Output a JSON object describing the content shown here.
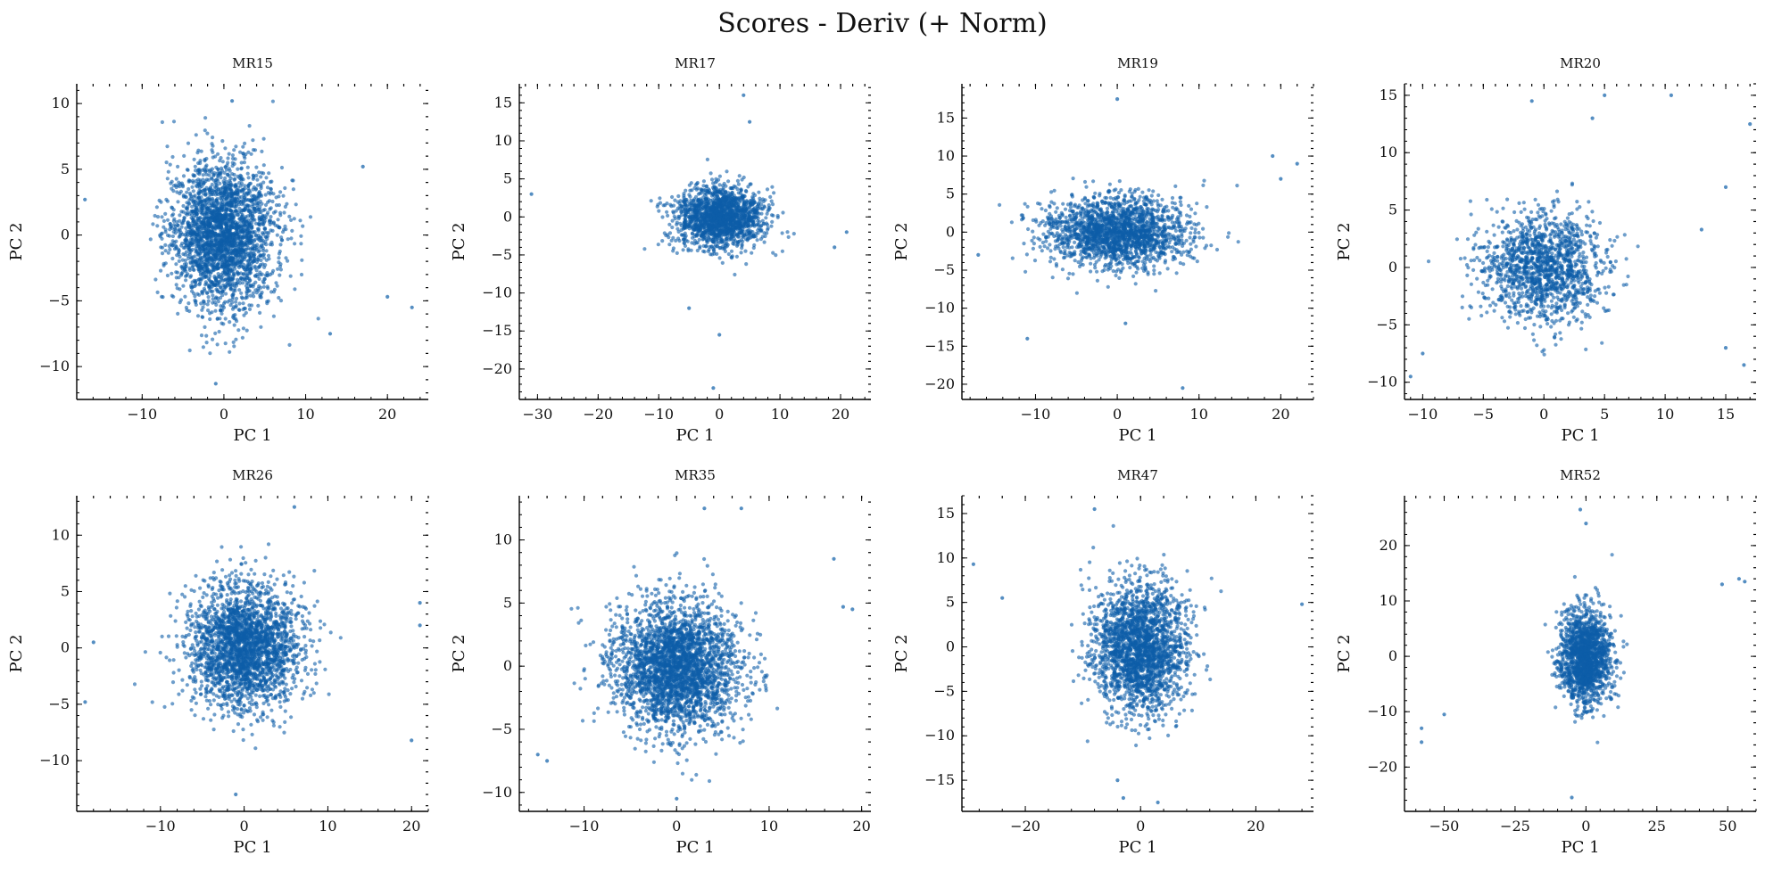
{
  "figure": {
    "suptitle": "Scores - Deriv (+ Norm)",
    "point_color": "#0d5ea8"
  },
  "chart_data": [
    {
      "type": "scatter",
      "title": "MR15",
      "xlabel": "PC 1",
      "ylabel": "PC 2",
      "xlim": [
        -18,
        25
      ],
      "ylim": [
        -12.5,
        11.5
      ],
      "xticks": [
        -10,
        0,
        10,
        20
      ],
      "yticks": [
        -10,
        -5,
        0,
        5,
        10
      ],
      "center": [
        0,
        0
      ],
      "spread": [
        3.2,
        2.8
      ],
      "points": 2600,
      "outliers": [
        [
          23,
          -5.5
        ],
        [
          20,
          -4.7
        ],
        [
          -17,
          2.7
        ],
        [
          17,
          5.2
        ],
        [
          -1,
          -11.3
        ],
        [
          1,
          10.2
        ],
        [
          13,
          -7.5
        ]
      ]
    },
    {
      "type": "scatter",
      "title": "MR17",
      "xlabel": "PC 1",
      "ylabel": "PC 2",
      "xlim": [
        -33,
        25
      ],
      "ylim": [
        -24,
        17.5
      ],
      "xticks": [
        -30,
        -20,
        -10,
        0,
        10,
        20
      ],
      "yticks": [
        -20,
        -15,
        -10,
        -5,
        0,
        5,
        10,
        15
      ],
      "center": [
        0,
        0
      ],
      "spread": [
        3.8,
        2.0
      ],
      "points": 1700,
      "outliers": [
        [
          -31,
          3
        ],
        [
          -5,
          -12
        ],
        [
          0,
          -15.5
        ],
        [
          -1,
          -22.5
        ],
        [
          4,
          16
        ],
        [
          5,
          12.5
        ],
        [
          19,
          -4
        ],
        [
          21,
          -2
        ]
      ]
    },
    {
      "type": "scatter",
      "title": "MR19",
      "xlabel": "PC 1",
      "ylabel": "PC 2",
      "xlim": [
        -19,
        24
      ],
      "ylim": [
        -22,
        19.5
      ],
      "xticks": [
        -10,
        0,
        10,
        20
      ],
      "yticks": [
        -20,
        -15,
        -10,
        -5,
        0,
        5,
        10,
        15
      ],
      "center": [
        0,
        0
      ],
      "spread": [
        4.3,
        2.3
      ],
      "points": 1900,
      "outliers": [
        [
          -17,
          -3
        ],
        [
          -11,
          -14
        ],
        [
          0,
          17.5
        ],
        [
          1,
          -12
        ],
        [
          8,
          -20.5
        ],
        [
          19,
          10
        ],
        [
          22,
          9
        ],
        [
          20,
          7
        ]
      ]
    },
    {
      "type": "scatter",
      "title": "MR20",
      "xlabel": "PC 1",
      "ylabel": "PC 2",
      "xlim": [
        -11.5,
        17.5
      ],
      "ylim": [
        -11.5,
        16
      ],
      "xticks": [
        -10,
        -5,
        0,
        5,
        10,
        15
      ],
      "yticks": [
        -10,
        -5,
        0,
        5,
        10,
        15
      ],
      "center": [
        0,
        0
      ],
      "spread": [
        2.5,
        2.4
      ],
      "points": 1400,
      "outliers": [
        [
          -1,
          14.5
        ],
        [
          4,
          13
        ],
        [
          5,
          15
        ],
        [
          10.5,
          15
        ],
        [
          17,
          12.5
        ],
        [
          15,
          -7
        ],
        [
          13,
          3.3
        ],
        [
          -10,
          -7.5
        ],
        [
          -11,
          -9.5
        ],
        [
          16.5,
          -8.5
        ],
        [
          15,
          7
        ]
      ]
    },
    {
      "type": "scatter",
      "title": "MR26",
      "xlabel": "PC 1",
      "ylabel": "PC 2",
      "xlim": [
        -20,
        22
      ],
      "ylim": [
        -14.5,
        13.5
      ],
      "xticks": [
        -10,
        0,
        10,
        20
      ],
      "yticks": [
        -10,
        -5,
        0,
        5,
        10
      ],
      "center": [
        0,
        0
      ],
      "spread": [
        3.3,
        2.7
      ],
      "points": 2400,
      "outliers": [
        [
          -19,
          -4.8
        ],
        [
          -18,
          0.5
        ],
        [
          20,
          -8.2
        ],
        [
          21,
          4
        ],
        [
          21,
          2
        ],
        [
          -1,
          -13
        ],
        [
          6,
          12.5
        ]
      ]
    },
    {
      "type": "scatter",
      "title": "MR35",
      "xlabel": "PC 1",
      "ylabel": "PC 2",
      "xlim": [
        -17,
        21
      ],
      "ylim": [
        -11.5,
        13.5
      ],
      "xticks": [
        -10,
        0,
        10,
        20
      ],
      "yticks": [
        -10,
        -5,
        0,
        5,
        10
      ],
      "center": [
        0,
        0
      ],
      "spread": [
        3.4,
        2.6
      ],
      "points": 2800,
      "outliers": [
        [
          -15,
          -7
        ],
        [
          -14,
          -7.5
        ],
        [
          18,
          4.7
        ],
        [
          19,
          4.5
        ],
        [
          17,
          8.5
        ],
        [
          7,
          12.5
        ],
        [
          3,
          12.5
        ],
        [
          0,
          -10.5
        ]
      ]
    },
    {
      "type": "scatter",
      "title": "MR47",
      "xlabel": "PC 1",
      "ylabel": "PC 2",
      "xlim": [
        -31,
        30
      ],
      "ylim": [
        -18.5,
        17
      ],
      "xticks": [
        -20,
        0,
        20
      ],
      "yticks": [
        -15,
        -10,
        -5,
        0,
        5,
        10,
        15
      ],
      "center": [
        0,
        0
      ],
      "spread": [
        4.0,
        3.6
      ],
      "points": 2200,
      "outliers": [
        [
          -29,
          9.3
        ],
        [
          -24,
          5.5
        ],
        [
          -8,
          15.5
        ],
        [
          28,
          4.8
        ],
        [
          -3,
          -17
        ],
        [
          3,
          -17.5
        ],
        [
          -4,
          -15
        ]
      ]
    },
    {
      "type": "scatter",
      "title": "MR52",
      "xlabel": "PC 1",
      "ylabel": "PC 2",
      "xlim": [
        -64,
        60
      ],
      "ylim": [
        -28,
        29
      ],
      "xticks": [
        -50,
        -25,
        0,
        25,
        50
      ],
      "yticks": [
        -20,
        -10,
        0,
        10,
        20
      ],
      "center": [
        0,
        0
      ],
      "spread": [
        4.5,
        4.3
      ],
      "points": 1600,
      "outliers": [
        [
          -58,
          -13
        ],
        [
          -58,
          -15.5
        ],
        [
          -50,
          -10.5
        ],
        [
          48,
          13
        ],
        [
          54,
          14
        ],
        [
          56,
          13.5
        ],
        [
          -2,
          26.5
        ],
        [
          0,
          24
        ],
        [
          -5,
          -25.5
        ]
      ]
    }
  ]
}
